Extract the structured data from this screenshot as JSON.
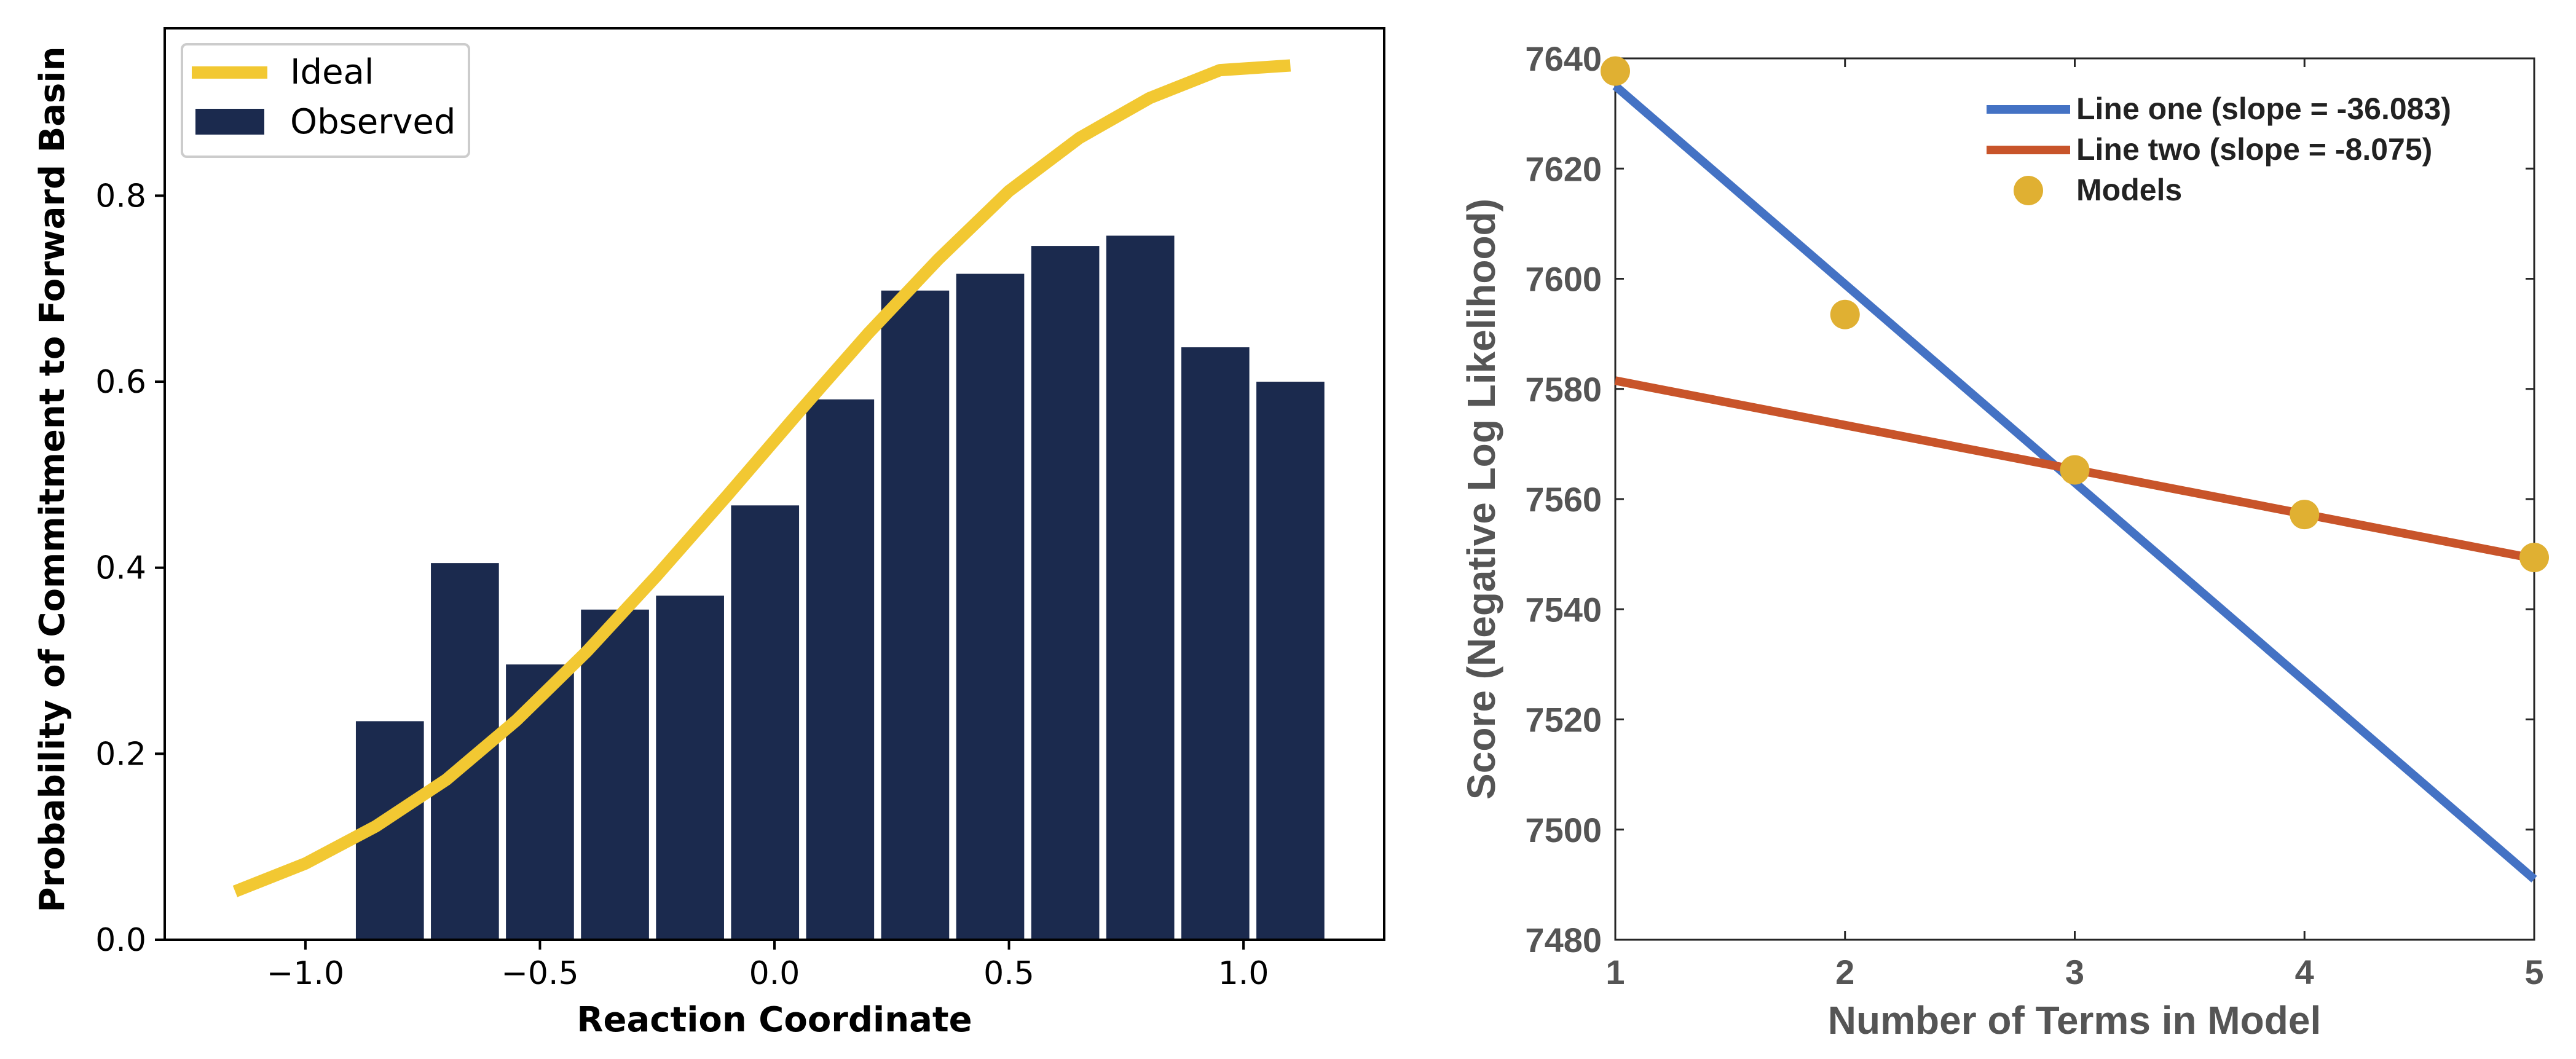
{
  "chart_data": [
    {
      "type": "bar",
      "xlabel": "Reaction Coordinate",
      "ylabel": "Probability of Commitment to Forward Basin",
      "xlim": [
        -1.3,
        1.3
      ],
      "ylim": [
        0,
        0.98
      ],
      "xticks": [
        -1.0,
        -0.5,
        0.0,
        0.5,
        1.0
      ],
      "xtick_labels": [
        "−1.0",
        "−0.5",
        "0.0",
        "0.5",
        "1.0"
      ],
      "yticks": [
        0.0,
        0.2,
        0.4,
        0.6,
        0.8
      ],
      "ytick_labels": [
        "0.0",
        "0.2",
        "0.4",
        "0.6",
        "0.8"
      ],
      "legend": {
        "position": "top-left",
        "entries": [
          {
            "label": "Ideal",
            "kind": "line",
            "color": "#f2c832"
          },
          {
            "label": "Observed",
            "kind": "bar",
            "color": "#1b2a4e"
          }
        ]
      },
      "bar_width": 0.145,
      "bars": {
        "name": "Observed",
        "color": "#1b2a4e",
        "x": [
          -0.82,
          -0.66,
          -0.5,
          -0.34,
          -0.18,
          -0.02,
          0.14,
          0.3,
          0.46,
          0.62,
          0.78,
          0.94,
          1.1
        ],
        "values": [
          0.235,
          0.405,
          0.296,
          0.355,
          0.37,
          0.467,
          0.581,
          0.698,
          0.716,
          0.746,
          0.757,
          0.637,
          0.6
        ]
      },
      "line": {
        "name": "Ideal",
        "color": "#f2c832",
        "x": [
          -1.15,
          -1.0,
          -0.85,
          -0.7,
          -0.55,
          -0.4,
          -0.25,
          -0.1,
          0.05,
          0.2,
          0.35,
          0.5,
          0.65,
          0.8,
          0.95,
          1.1
        ],
        "y": [
          0.052,
          0.082,
          0.122,
          0.172,
          0.236,
          0.31,
          0.392,
          0.478,
          0.566,
          0.652,
          0.732,
          0.805,
          0.862,
          0.905,
          0.935,
          0.94
        ]
      }
    },
    {
      "type": "line",
      "xlabel": "Number of Terms in Model",
      "ylabel": "Score (Negative Log Likelihood)",
      "xlim": [
        1,
        5
      ],
      "ylim": [
        7480,
        7640
      ],
      "xticks": [
        1,
        2,
        3,
        4,
        5
      ],
      "xtick_labels": [
        "1",
        "2",
        "3",
        "4",
        "5"
      ],
      "yticks": [
        7480,
        7500,
        7520,
        7540,
        7560,
        7580,
        7600,
        7620,
        7640
      ],
      "ytick_labels": [
        "7480",
        "7500",
        "7520",
        "7540",
        "7560",
        "7580",
        "7600",
        "7620",
        "7640"
      ],
      "legend": {
        "position": "top-right",
        "entries": [
          {
            "label": "Line one (slope = -36.083)",
            "kind": "line",
            "color": "#4472c4"
          },
          {
            "label": "Line two (slope = -8.075)",
            "kind": "line",
            "color": "#c8542a"
          },
          {
            "label": "Models",
            "kind": "marker",
            "color": "#e0b032"
          }
        ]
      },
      "series": [
        {
          "name": "Line one (slope = -36.083)",
          "color": "#4472c4",
          "x": [
            1,
            5
          ],
          "y": [
            7635,
            7491
          ]
        },
        {
          "name": "Line two (slope = -8.075)",
          "color": "#c8542a",
          "x": [
            1,
            5
          ],
          "y": [
            7581.5,
            7549.2
          ]
        }
      ],
      "points": {
        "name": "Models",
        "color": "#e0b032",
        "x": [
          1,
          2,
          3,
          4,
          5
        ],
        "y": [
          7637.7,
          7593.5,
          7565.3,
          7557.2,
          7549.4
        ]
      }
    }
  ]
}
